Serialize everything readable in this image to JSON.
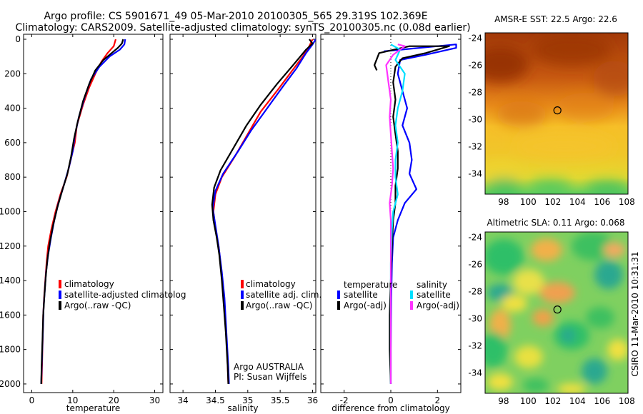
{
  "header": {
    "title_line1": "Argo profile: CS 5901671_49 05-Mar-2010 20100305_565 29.319S 102.369E",
    "title_line2": "Climatology: CARS2009. Satellite-adjusted climatology: synTS_20100305.nc (0.08d earlier)"
  },
  "footer": {
    "institution": "Argo AUSTRALIA",
    "pi": "PI: Susan Wijffels",
    "stamp": "CSIRO 11-Mar-2010 10:31:31"
  },
  "colors": {
    "climatology": "#ff0000",
    "satellite": "#0000ff",
    "argo": "#000000",
    "sal_satellite": "#00e0ff",
    "sal_argo": "#ff33ff"
  },
  "chart_data": [
    {
      "type": "line",
      "xlabel": "temperature",
      "ylabel": "",
      "xlim": [
        -2,
        32
      ],
      "ylim": [
        2050,
        0
      ],
      "xticks": [
        "0",
        "10",
        "20",
        "30"
      ],
      "yticks": [
        "0",
        "200",
        "400",
        "600",
        "800",
        "1000",
        "1200",
        "1400",
        "1600",
        "1800",
        "2000"
      ],
      "legend": [
        "climatology",
        "satellite-adjusted climatolog",
        "Argo(..raw -QC)"
      ],
      "series": [
        {
          "name": "climatology",
          "color": "#ff0000",
          "points": [
            [
              20.5,
              0
            ],
            [
              20,
              40
            ],
            [
              18.5,
              80
            ],
            [
              17,
              130
            ],
            [
              15.5,
              200
            ],
            [
              14,
              280
            ],
            [
              12.5,
              380
            ],
            [
              11,
              500
            ],
            [
              10.5,
              600
            ],
            [
              9.5,
              700
            ],
            [
              8.5,
              800
            ],
            [
              7,
              900
            ],
            [
              5.8,
              1000
            ],
            [
              4.8,
              1100
            ],
            [
              4,
              1200
            ],
            [
              3.6,
              1300
            ],
            [
              3.3,
              1400
            ],
            [
              3,
              1500
            ],
            [
              2.8,
              1600
            ],
            [
              2.6,
              1800
            ],
            [
              2.4,
              2000
            ]
          ]
        },
        {
          "name": "satellite-adjusted climatolog",
          "color": "#0000ff",
          "points": [
            [
              22.8,
              0
            ],
            [
              22.6,
              30
            ],
            [
              21.5,
              60
            ],
            [
              19,
              100
            ],
            [
              16.5,
              160
            ],
            [
              14.5,
              230
            ],
            [
              13,
              330
            ],
            [
              11.5,
              450
            ],
            [
              10.5,
              560
            ],
            [
              10,
              650
            ],
            [
              9,
              750
            ],
            [
              7.8,
              850
            ],
            [
              6.5,
              950
            ],
            [
              5.5,
              1050
            ],
            [
              4.7,
              1150
            ],
            [
              4,
              1250
            ],
            [
              3.5,
              1350
            ],
            [
              3.2,
              1450
            ],
            [
              2.9,
              1550
            ],
            [
              2.7,
              1700
            ],
            [
              2.5,
              1850
            ],
            [
              2.3,
              2000
            ]
          ]
        },
        {
          "name": "Argo(..raw -QC)",
          "color": "#000000",
          "points": [
            [
              22.3,
              0
            ],
            [
              22,
              25
            ],
            [
              21,
              50
            ],
            [
              19.5,
              80
            ],
            [
              17.5,
              120
            ],
            [
              15.5,
              180
            ],
            [
              14,
              260
            ],
            [
              12.5,
              360
            ],
            [
              11.2,
              480
            ],
            [
              10.3,
              580
            ],
            [
              9.6,
              680
            ],
            [
              8.7,
              780
            ],
            [
              7.4,
              880
            ],
            [
              6.2,
              980
            ],
            [
              5.2,
              1080
            ],
            [
              4.4,
              1180
            ],
            [
              3.8,
              1280
            ],
            [
              3.4,
              1380
            ],
            [
              3.1,
              1480
            ],
            [
              2.8,
              1600
            ],
            [
              2.6,
              1750
            ],
            [
              2.4,
              1900
            ],
            [
              2.3,
              2000
            ]
          ]
        }
      ]
    },
    {
      "type": "line",
      "xlabel": "salinity",
      "ylabel": "",
      "xlim": [
        33.8,
        36.05
      ],
      "ylim": [
        2050,
        0
      ],
      "xticks": [
        "34",
        "34.5",
        "35",
        "35.5",
        "36"
      ],
      "legend": [
        "climatology",
        "satellite adj. clim.",
        "Argo(..raw -QC)"
      ],
      "series": [
        {
          "name": "climatology",
          "color": "#ff0000",
          "points": [
            [
              36,
              0
            ],
            [
              35.95,
              40
            ],
            [
              35.85,
              100
            ],
            [
              35.65,
              200
            ],
            [
              35.45,
              300
            ],
            [
              35.2,
              420
            ],
            [
              35,
              550
            ],
            [
              34.8,
              680
            ],
            [
              34.6,
              800
            ],
            [
              34.5,
              900
            ],
            [
              34.47,
              1000
            ],
            [
              34.5,
              1100
            ],
            [
              34.55,
              1200
            ],
            [
              34.58,
              1300
            ],
            [
              34.62,
              1450
            ],
            [
              34.65,
              1600
            ],
            [
              34.68,
              1800
            ],
            [
              34.7,
              2000
            ]
          ]
        },
        {
          "name": "satellite adj. clim.",
          "color": "#0000ff",
          "points": [
            [
              36.05,
              0
            ],
            [
              36,
              30
            ],
            [
              35.9,
              80
            ],
            [
              35.75,
              170
            ],
            [
              35.55,
              270
            ],
            [
              35.3,
              400
            ],
            [
              35.05,
              530
            ],
            [
              34.85,
              650
            ],
            [
              34.62,
              780
            ],
            [
              34.5,
              880
            ],
            [
              34.46,
              980
            ],
            [
              34.5,
              1080
            ],
            [
              34.55,
              1200
            ],
            [
              34.6,
              1350
            ],
            [
              34.64,
              1500
            ],
            [
              34.67,
              1700
            ],
            [
              34.7,
              1900
            ],
            [
              34.71,
              2000
            ]
          ]
        },
        {
          "name": "Argo(..raw -QC)",
          "color": "#000000",
          "points": [
            [
              35.95,
              0
            ],
            [
              36,
              25
            ],
            [
              35.9,
              60
            ],
            [
              35.7,
              150
            ],
            [
              35.45,
              260
            ],
            [
              35.2,
              380
            ],
            [
              34.98,
              500
            ],
            [
              34.78,
              630
            ],
            [
              34.58,
              760
            ],
            [
              34.48,
              860
            ],
            [
              34.45,
              960
            ],
            [
              34.47,
              1050
            ],
            [
              34.52,
              1150
            ],
            [
              34.56,
              1250
            ],
            [
              34.6,
              1400
            ],
            [
              34.63,
              1550
            ],
            [
              34.66,
              1700
            ],
            [
              34.69,
              1900
            ],
            [
              34.7,
              2000
            ]
          ]
        }
      ]
    },
    {
      "type": "line",
      "xlabel": "difference from climatology",
      "ylabel": "",
      "xlim": [
        -3,
        3
      ],
      "ylim": [
        2050,
        0
      ],
      "xticks": [
        "-2",
        "0",
        "2"
      ],
      "legend_groups": [
        {
          "title": "temperature",
          "entries": [
            "satellite",
            "Argo(-adj)"
          ]
        },
        {
          "title": "salinity",
          "entries": [
            "satellite",
            "Argo(-adj)"
          ]
        }
      ],
      "series": [
        {
          "name": "temperature satellite",
          "color": "#0000ff",
          "points": [
            [
              -0.3,
              70
            ],
            [
              2.8,
              30
            ],
            [
              2.8,
              50
            ],
            [
              1.5,
              90
            ],
            [
              0.4,
              120
            ],
            [
              0.3,
              200
            ],
            [
              0.5,
              300
            ],
            [
              0.7,
              400
            ],
            [
              0.5,
              500
            ],
            [
              0.8,
              600
            ],
            [
              0.9,
              700
            ],
            [
              0.8,
              780
            ],
            [
              1.1,
              870
            ],
            [
              0.6,
              950
            ],
            [
              0.3,
              1050
            ],
            [
              0.1,
              1150
            ],
            [
              0.05,
              1300
            ],
            [
              0.02,
              1500
            ],
            [
              0,
              1800
            ],
            [
              0,
              2000
            ]
          ]
        },
        {
          "name": "temperature Argo(-adj)",
          "color": "#000000",
          "points": [
            [
              -0.6,
              180
            ],
            [
              -0.7,
              150
            ],
            [
              -0.5,
              80
            ],
            [
              0.8,
              40
            ],
            [
              2.5,
              40
            ],
            [
              1.5,
              80
            ],
            [
              0.5,
              110
            ],
            [
              0.2,
              160
            ],
            [
              0.1,
              250
            ],
            [
              0.2,
              350
            ],
            [
              0.1,
              450
            ],
            [
              0.2,
              550
            ],
            [
              0.3,
              650
            ],
            [
              0.3,
              750
            ],
            [
              0.2,
              850
            ],
            [
              0.2,
              950
            ],
            [
              0.1,
              1050
            ],
            [
              0.05,
              1200
            ],
            [
              0,
              1400
            ],
            [
              -0.05,
              1600
            ],
            [
              -0.05,
              1800
            ],
            [
              0,
              2000
            ]
          ]
        },
        {
          "name": "salinity satellite",
          "color": "#00e0ff",
          "points": [
            [
              0,
              30
            ],
            [
              0.4,
              60
            ],
            [
              0.2,
              120
            ],
            [
              0.6,
              200
            ],
            [
              0.5,
              300
            ],
            [
              0.3,
              400
            ],
            [
              0.2,
              500
            ],
            [
              0.3,
              600
            ],
            [
              0.2,
              700
            ],
            [
              0.2,
              800
            ],
            [
              0.3,
              900
            ],
            [
              0.1,
              1000
            ],
            [
              0.05,
              1100
            ],
            [
              0,
              1300
            ],
            [
              0,
              1600
            ],
            [
              0,
              2000
            ]
          ]
        },
        {
          "name": "salinity Argo(-adj)",
          "color": "#ff33ff",
          "points": [
            [
              0.3,
              30
            ],
            [
              0.6,
              40
            ],
            [
              0.1,
              90
            ],
            [
              -0.2,
              150
            ],
            [
              -0.1,
              250
            ],
            [
              0,
              350
            ],
            [
              -0.05,
              450
            ],
            [
              0,
              550
            ],
            [
              0.05,
              650
            ],
            [
              0.1,
              750
            ],
            [
              0.05,
              850
            ],
            [
              -0.05,
              950
            ],
            [
              0,
              1050
            ],
            [
              0,
              1200
            ],
            [
              0,
              1500
            ],
            [
              0,
              2000
            ]
          ]
        }
      ]
    },
    {
      "type": "heatmap",
      "title": "AMSR-E SST: 22.5 Argo: 22.6",
      "xlim": [
        96.5,
        108.1
      ],
      "ylim": [
        -35.5,
        -23.6
      ],
      "xticks": [
        "98",
        "100",
        "102",
        "104",
        "106",
        "108"
      ],
      "yticks": [
        "-24",
        "-26",
        "-28",
        "-30",
        "-32",
        "-34"
      ],
      "marker": {
        "lon": 102.369,
        "lat": -29.319
      }
    },
    {
      "type": "heatmap",
      "title": "Altimetric SLA: 0.11 Argo: 0.068",
      "xlim": [
        96.5,
        108.1
      ],
      "ylim": [
        -35.5,
        -23.6
      ],
      "xticks": [
        "98",
        "100",
        "102",
        "104",
        "106",
        "108"
      ],
      "yticks": [
        "-24",
        "-26",
        "-28",
        "-30",
        "-32",
        "-34"
      ],
      "marker": {
        "lon": 102.369,
        "lat": -29.319
      }
    }
  ]
}
